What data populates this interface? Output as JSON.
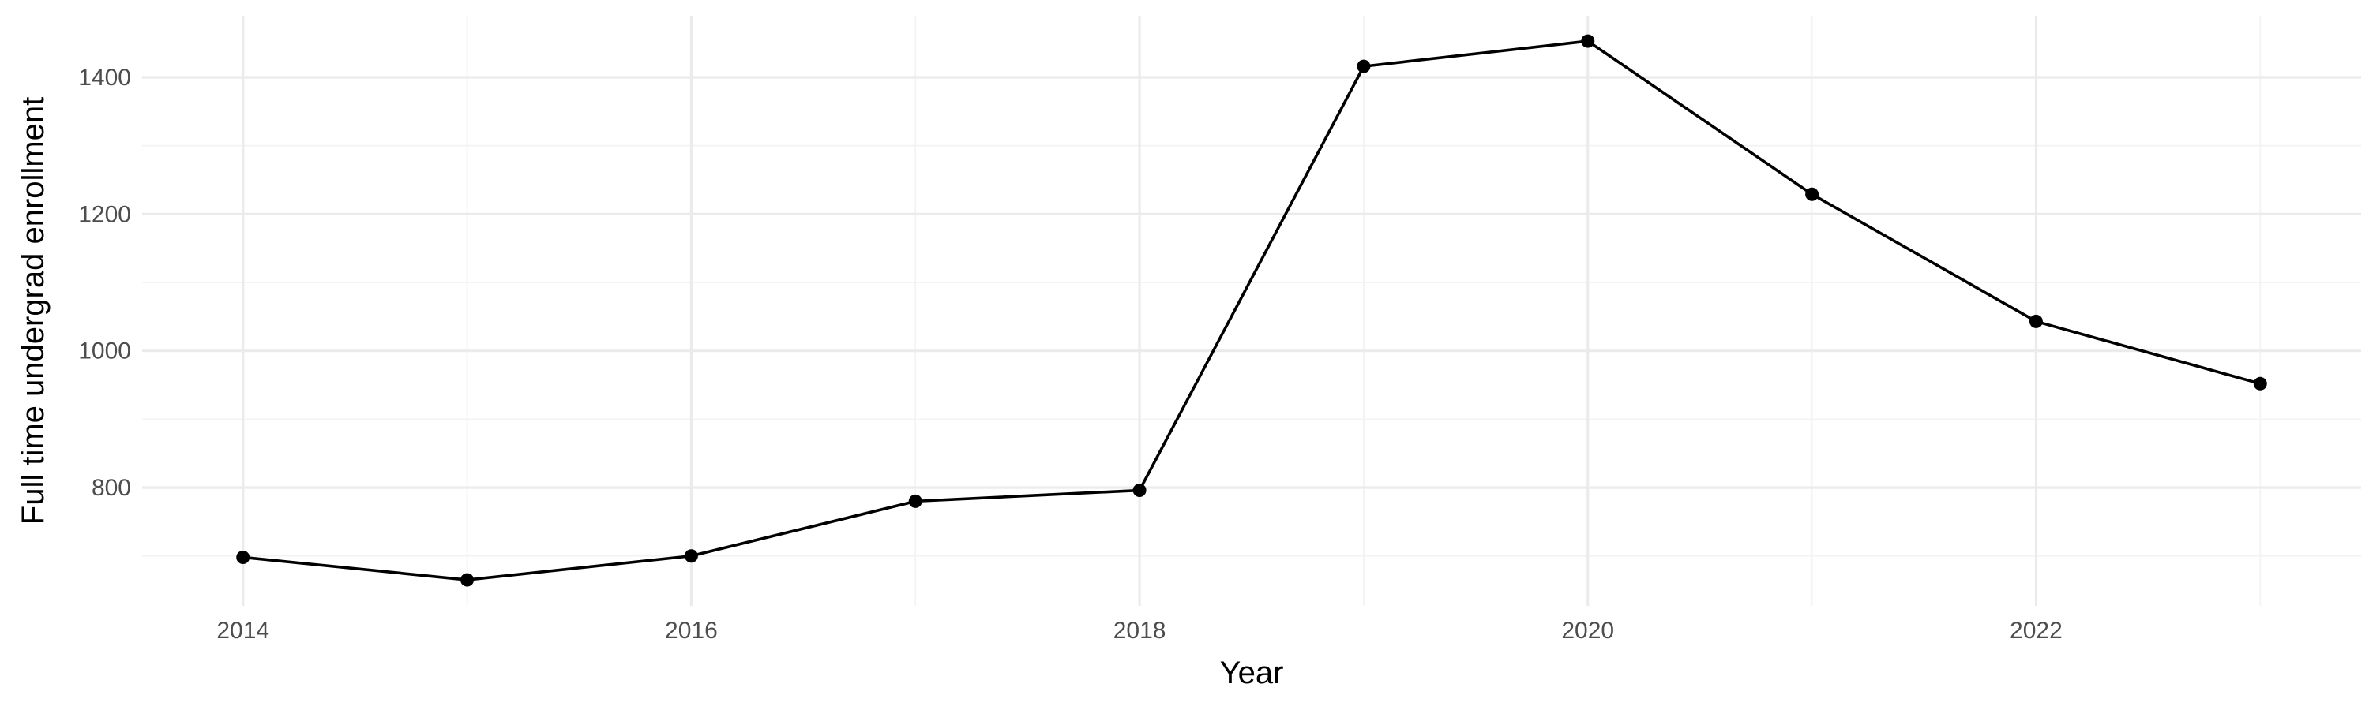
{
  "chart_data": {
    "type": "line",
    "title": "",
    "xlabel": "Year",
    "ylabel": "Full time undergrad enrollment",
    "x": [
      2014,
      2015,
      2016,
      2017,
      2018,
      2019,
      2020,
      2021,
      2022,
      2023
    ],
    "series": [
      {
        "values": [
          698,
          665,
          700,
          780,
          796,
          1416,
          1453,
          1229,
          1043,
          952
        ]
      }
    ],
    "xlim": [
      2013.55,
      2023.45
    ],
    "ylim": [
      627,
      1490
    ],
    "x_ticks": [
      2014,
      2016,
      2018,
      2020,
      2022
    ],
    "x_tick_labels": [
      "2014",
      "2016",
      "2018",
      "2020",
      "2022"
    ],
    "y_ticks": [
      800,
      1000,
      1200,
      1400
    ],
    "y_tick_labels": [
      "800",
      "1000",
      "1200",
      "1400"
    ],
    "grid": true,
    "legend": "none",
    "line_color": "#000000",
    "point_color": "#000000",
    "grid_color": "#ebebeb"
  }
}
